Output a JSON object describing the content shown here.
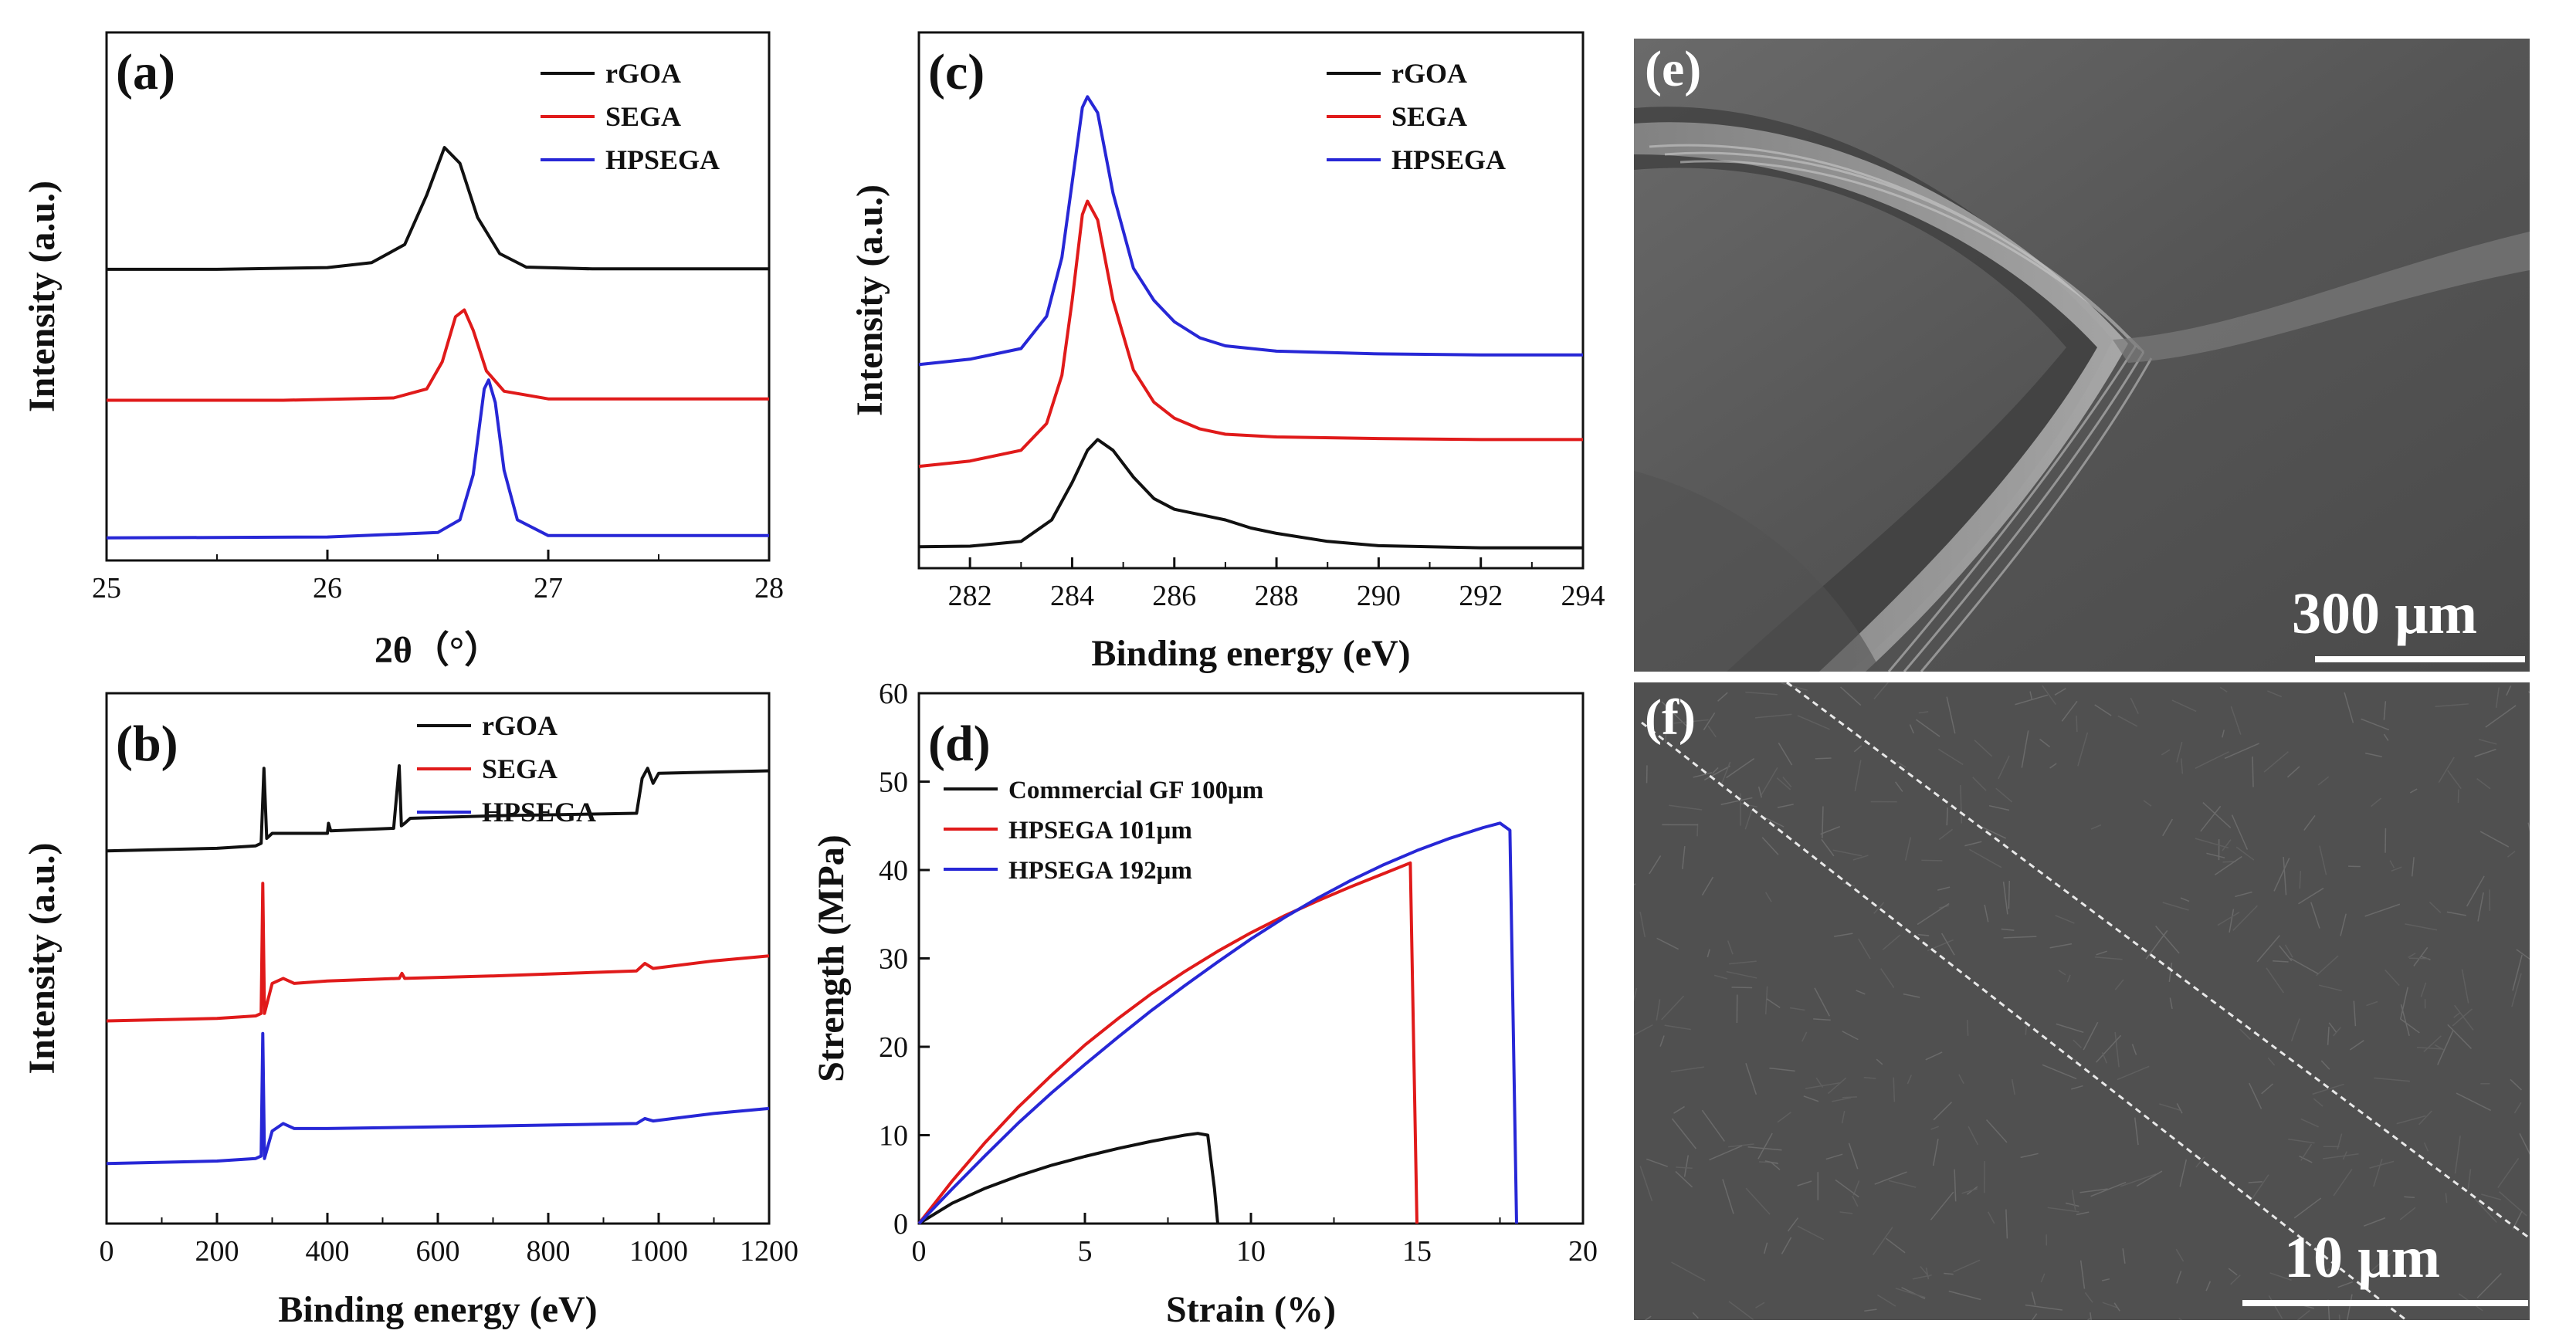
{
  "colors": {
    "black": "#111111",
    "red": "#e01a1a",
    "blue": "#2727d6",
    "sem_bg": "#5b5b5b",
    "white": "#ffffff"
  },
  "chart_data": [
    {
      "panel": "(a)",
      "type": "line",
      "xlabel": "2θ（°）",
      "ylabel": "Intensity (a.u.)",
      "xlim": [
        25,
        28
      ],
      "xticks": [
        "25",
        "26",
        "27",
        "28"
      ],
      "y_ticks_labeled": false,
      "legend_position": "top-right",
      "series": [
        {
          "name": "rGOA",
          "color": "#111111",
          "x": [
            25,
            25.5,
            26,
            26.2,
            26.35,
            26.45,
            26.53,
            26.6,
            26.68,
            26.78,
            26.9,
            27.2,
            28
          ],
          "y": [
            5.95,
            5.95,
            5.99,
            6.1,
            6.5,
            7.6,
            8.65,
            8.3,
            7.1,
            6.3,
            6.0,
            5.96,
            5.96
          ]
        },
        {
          "name": "SEGA",
          "color": "#e01a1a",
          "x": [
            25,
            25.8,
            26.3,
            26.45,
            26.52,
            26.58,
            26.62,
            26.66,
            26.72,
            26.8,
            27.0,
            28
          ],
          "y": [
            3.05,
            3.05,
            3.1,
            3.3,
            3.9,
            4.9,
            5.05,
            4.6,
            3.7,
            3.25,
            3.08,
            3.08
          ]
        },
        {
          "name": "HPSEGA",
          "color": "#2727d6",
          "x": [
            25,
            26.0,
            26.5,
            26.6,
            26.66,
            26.71,
            26.73,
            26.76,
            26.8,
            26.86,
            27.0,
            28
          ],
          "y": [
            0.0,
            0.02,
            0.12,
            0.4,
            1.4,
            3.3,
            3.5,
            3.0,
            1.5,
            0.4,
            0.05,
            0.05
          ]
        }
      ]
    },
    {
      "panel": "(b)",
      "type": "line",
      "xlabel": "Binding energy (eV)",
      "ylabel": "Intensity (a.u.)",
      "xlim": [
        0,
        1200
      ],
      "xticks": [
        "0",
        "200",
        "400",
        "600",
        "800",
        "1000",
        "1200"
      ],
      "y_ticks_labeled": false,
      "legend_position": "top-center",
      "series": [
        {
          "name": "rGOA",
          "color": "#111111",
          "x": [
            0,
            200,
            270,
            280,
            285,
            290,
            300,
            400,
            402,
            406,
            520,
            530,
            534,
            540,
            550,
            700,
            960,
            970,
            980,
            990,
            1000,
            1200
          ],
          "y": [
            7.45,
            7.5,
            7.55,
            7.6,
            9.1,
            7.7,
            7.8,
            7.8,
            8.0,
            7.85,
            7.9,
            9.15,
            7.95,
            8.0,
            8.1,
            8.15,
            8.2,
            8.9,
            9.1,
            8.8,
            9.0,
            9.05
          ]
        },
        {
          "name": "SEGA",
          "color": "#e01a1a",
          "x": [
            0,
            200,
            270,
            280,
            283,
            286,
            300,
            320,
            340,
            400,
            530,
            535,
            540,
            700,
            960,
            975,
            990,
            1100,
            1200
          ],
          "y": [
            4.05,
            4.1,
            4.15,
            4.2,
            6.8,
            4.2,
            4.8,
            4.9,
            4.8,
            4.85,
            4.9,
            5.0,
            4.9,
            4.95,
            5.05,
            5.2,
            5.1,
            5.25,
            5.35
          ]
        },
        {
          "name": "HPSEGA",
          "color": "#2727d6",
          "x": [
            0,
            200,
            270,
            280,
            283,
            286,
            300,
            320,
            340,
            400,
            700,
            960,
            975,
            990,
            1100,
            1200
          ],
          "y": [
            1.2,
            1.25,
            1.3,
            1.35,
            3.8,
            1.3,
            1.85,
            2.0,
            1.9,
            1.9,
            1.95,
            2.0,
            2.1,
            2.05,
            2.2,
            2.3
          ]
        }
      ]
    },
    {
      "panel": "(c)",
      "type": "line",
      "xlabel": "Binding energy (eV)",
      "ylabel": "Intensity (a.u.)",
      "xlim": [
        281,
        294
      ],
      "xticks": [
        "282",
        "284",
        "286",
        "288",
        "290",
        "292",
        "294"
      ],
      "y_ticks_labeled": false,
      "legend_position": "top-right",
      "series": [
        {
          "name": "rGOA",
          "color": "#111111",
          "x": [
            281,
            282,
            283,
            283.6,
            284.0,
            284.3,
            284.5,
            284.8,
            285.2,
            285.6,
            286.0,
            286.5,
            287.0,
            287.5,
            288,
            289,
            290,
            292,
            294
          ],
          "y": [
            0.4,
            0.41,
            0.5,
            0.9,
            1.6,
            2.2,
            2.4,
            2.2,
            1.7,
            1.3,
            1.1,
            1.0,
            0.9,
            0.75,
            0.65,
            0.5,
            0.42,
            0.38,
            0.38
          ]
        },
        {
          "name": "SEGA",
          "color": "#e01a1a",
          "x": [
            281,
            282,
            283,
            283.5,
            283.8,
            284.0,
            284.2,
            284.3,
            284.5,
            284.8,
            285.2,
            285.6,
            286.0,
            286.5,
            287,
            288,
            290,
            292,
            294
          ],
          "y": [
            1.9,
            2.0,
            2.2,
            2.7,
            3.6,
            5.0,
            6.6,
            6.85,
            6.5,
            5.0,
            3.7,
            3.1,
            2.8,
            2.6,
            2.5,
            2.45,
            2.42,
            2.4,
            2.4
          ]
        },
        {
          "name": "HPSEGA",
          "color": "#2727d6",
          "x": [
            281,
            282,
            283,
            283.5,
            283.8,
            284.0,
            284.2,
            284.3,
            284.5,
            284.8,
            285.2,
            285.6,
            286.0,
            286.5,
            287,
            288,
            290,
            292,
            294
          ],
          "y": [
            3.8,
            3.9,
            4.1,
            4.7,
            5.8,
            7.2,
            8.6,
            8.8,
            8.5,
            7.0,
            5.6,
            5.0,
            4.6,
            4.3,
            4.15,
            4.05,
            4.0,
            3.98,
            3.98
          ]
        }
      ]
    },
    {
      "panel": "(d)",
      "type": "line",
      "xlabel": "Strain (%)",
      "ylabel": "Strength (MPa)",
      "xlim": [
        0,
        20
      ],
      "ylim": [
        0,
        60
      ],
      "xticks": [
        "0",
        "5",
        "10",
        "15",
        "20"
      ],
      "yticks": [
        "0",
        "10",
        "20",
        "30",
        "40",
        "50",
        "60"
      ],
      "legend_position": "top-left",
      "series": [
        {
          "name": "Commercial GF 100μm",
          "color": "#111111",
          "x": [
            0,
            1,
            2,
            3,
            4,
            5,
            6,
            7,
            8,
            8.4,
            8.7,
            8.9,
            9.0
          ],
          "y": [
            0,
            2.3,
            4.0,
            5.4,
            6.6,
            7.6,
            8.5,
            9.3,
            10.0,
            10.2,
            10.0,
            4.0,
            0
          ]
        },
        {
          "name": "HPSEGA 101μm",
          "color": "#e01a1a",
          "x": [
            0,
            1,
            2,
            3,
            4,
            5,
            6,
            7,
            8,
            9,
            10,
            11,
            12,
            13,
            14,
            14.8,
            15.0
          ],
          "y": [
            0,
            4.8,
            9.2,
            13.2,
            16.8,
            20.2,
            23.2,
            26.0,
            28.5,
            30.8,
            32.9,
            34.8,
            36.5,
            38.1,
            39.6,
            40.8,
            0
          ]
        },
        {
          "name": "HPSEGA 192μm",
          "color": "#2727d6",
          "x": [
            0,
            1,
            2,
            3,
            4,
            5,
            6,
            7,
            8,
            9,
            10,
            11,
            12,
            13,
            14,
            15,
            16,
            17,
            17.5,
            17.8,
            18.0
          ],
          "y": [
            0,
            3.9,
            7.7,
            11.4,
            14.8,
            18.0,
            21.1,
            24.1,
            26.9,
            29.6,
            32.2,
            34.6,
            36.8,
            38.8,
            40.6,
            42.2,
            43.6,
            44.8,
            45.3,
            44.5,
            0
          ]
        }
      ]
    }
  ],
  "sem_images": [
    {
      "panel": "(e)",
      "scale_bar": "300 µm"
    },
    {
      "panel": "(f)",
      "scale_bar": "10 µm"
    }
  ]
}
